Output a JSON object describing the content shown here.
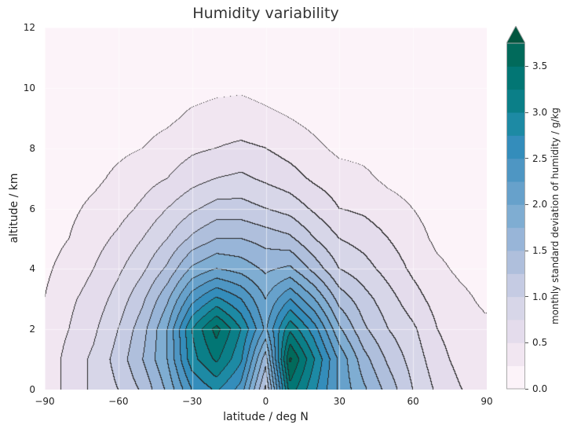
{
  "chart_data": {
    "type": "heatmap",
    "subtype": "filled-contour",
    "title": "Humidity variability",
    "xlabel": "latitude  /  deg N",
    "ylabel": "altitude  /  km",
    "colorbar_label": "monthly standard deviation of humidity  /  g/kg",
    "xlim": [
      -90,
      90
    ],
    "ylim": [
      0,
      12
    ],
    "xticks": [
      "-90",
      "-60",
      "-30",
      "0",
      "30",
      "60",
      "90"
    ],
    "xtick_values": [
      -90,
      -60,
      -30,
      0,
      30,
      60,
      90
    ],
    "yticks": [
      "0",
      "2",
      "4",
      "6",
      "8",
      "10",
      "12"
    ],
    "ytick_values": [
      0,
      2,
      4,
      6,
      8,
      10,
      12
    ],
    "cbar_ticks": [
      "0.0",
      "0.5",
      "1.0",
      "1.5",
      "2.0",
      "2.5",
      "3.0",
      "3.5"
    ],
    "cbar_tick_values": [
      0,
      0.5,
      1,
      1.5,
      2,
      2.5,
      3,
      3.5
    ],
    "levels": [
      0,
      0.25,
      0.5,
      0.75,
      1,
      1.25,
      1.5,
      1.75,
      2,
      2.25,
      2.5,
      2.75,
      3,
      3.25,
      3.5,
      3.75
    ],
    "extend": "max",
    "colors": [
      "#fcf3f9",
      "#f1e6f1",
      "#e4dcec",
      "#d7d6e8",
      "#c5cbe3",
      "#afbfdc",
      "#98b5d8",
      "#7fadd2",
      "#67a1cb",
      "#4e96c3",
      "#348dbb",
      "#1d8aa4",
      "#0b7f88",
      "#027674",
      "#016a5b",
      "#01553f"
    ],
    "grid": true,
    "lat": [
      -90,
      -80,
      -70,
      -60,
      -50,
      -40,
      -30,
      -20,
      -10,
      0,
      10,
      20,
      30,
      40,
      50,
      60,
      70,
      80,
      90
    ],
    "alt": [
      0,
      1,
      2,
      3,
      4,
      5,
      6,
      7,
      8,
      9,
      10,
      11,
      12
    ],
    "values": [
      [
        0.3,
        0.6,
        0.8,
        1.0,
        1.3,
        1.8,
        2.5,
        2.8,
        2.4,
        1.2,
        3.4,
        2.8,
        2.2,
        1.8,
        1.4,
        1.0,
        0.7,
        0.5,
        0.3
      ],
      [
        0.3,
        0.6,
        0.8,
        1.1,
        1.5,
        2.0,
        2.9,
        3.3,
        2.8,
        1.6,
        3.8,
        3.0,
        2.2,
        1.6,
        1.2,
        0.9,
        0.6,
        0.4,
        0.3
      ],
      [
        0.3,
        0.5,
        0.7,
        1.0,
        1.4,
        2.0,
        3.0,
        3.6,
        3.0,
        2.2,
        3.2,
        2.6,
        1.8,
        1.3,
        1.0,
        0.8,
        0.5,
        0.35,
        0.3
      ],
      [
        0.25,
        0.45,
        0.6,
        0.85,
        1.2,
        1.7,
        2.4,
        2.8,
        2.5,
        2.0,
        2.5,
        2.0,
        1.4,
        1.1,
        0.85,
        0.6,
        0.4,
        0.3,
        0.2
      ],
      [
        0.2,
        0.35,
        0.5,
        0.7,
        0.95,
        1.3,
        1.8,
        2.0,
        1.9,
        1.7,
        1.8,
        1.4,
        1.0,
        0.85,
        0.65,
        0.45,
        0.3,
        0.2,
        0.15
      ],
      [
        0.15,
        0.25,
        0.4,
        0.55,
        0.75,
        1.0,
        1.3,
        1.5,
        1.5,
        1.4,
        1.3,
        1.0,
        0.75,
        0.65,
        0.5,
        0.35,
        0.2,
        0.15,
        0.1
      ],
      [
        0.1,
        0.2,
        0.3,
        0.4,
        0.55,
        0.75,
        0.95,
        1.1,
        1.1,
        1.0,
        0.9,
        0.7,
        0.5,
        0.45,
        0.35,
        0.25,
        0.15,
        0.1,
        0.1
      ],
      [
        0.1,
        0.15,
        0.2,
        0.3,
        0.4,
        0.5,
        0.65,
        0.75,
        0.8,
        0.7,
        0.6,
        0.45,
        0.35,
        0.3,
        0.2,
        0.15,
        0.1,
        0.1,
        0.1
      ],
      [
        0.05,
        0.1,
        0.15,
        0.2,
        0.25,
        0.35,
        0.45,
        0.5,
        0.55,
        0.5,
        0.4,
        0.3,
        0.2,
        0.18,
        0.12,
        0.1,
        0.08,
        0.05,
        0.05
      ],
      [
        0.05,
        0.08,
        0.1,
        0.12,
        0.15,
        0.2,
        0.3,
        0.35,
        0.35,
        0.3,
        0.25,
        0.18,
        0.12,
        0.1,
        0.08,
        0.06,
        0.05,
        0.05,
        0.05
      ],
      [
        0.05,
        0.05,
        0.06,
        0.08,
        0.1,
        0.12,
        0.16,
        0.2,
        0.22,
        0.18,
        0.14,
        0.1,
        0.08,
        0.07,
        0.06,
        0.05,
        0.05,
        0.05,
        0.05
      ],
      [
        0.04,
        0.04,
        0.04,
        0.05,
        0.05,
        0.05,
        0.06,
        0.07,
        0.08,
        0.07,
        0.06,
        0.05,
        0.05,
        0.05,
        0.04,
        0.04,
        0.04,
        0.04,
        0.04
      ],
      [
        0.04,
        0.04,
        0.04,
        0.04,
        0.04,
        0.04,
        0.04,
        0.04,
        0.04,
        0.04,
        0.04,
        0.04,
        0.04,
        0.04,
        0.04,
        0.04,
        0.04,
        0.04,
        0.04
      ]
    ]
  }
}
